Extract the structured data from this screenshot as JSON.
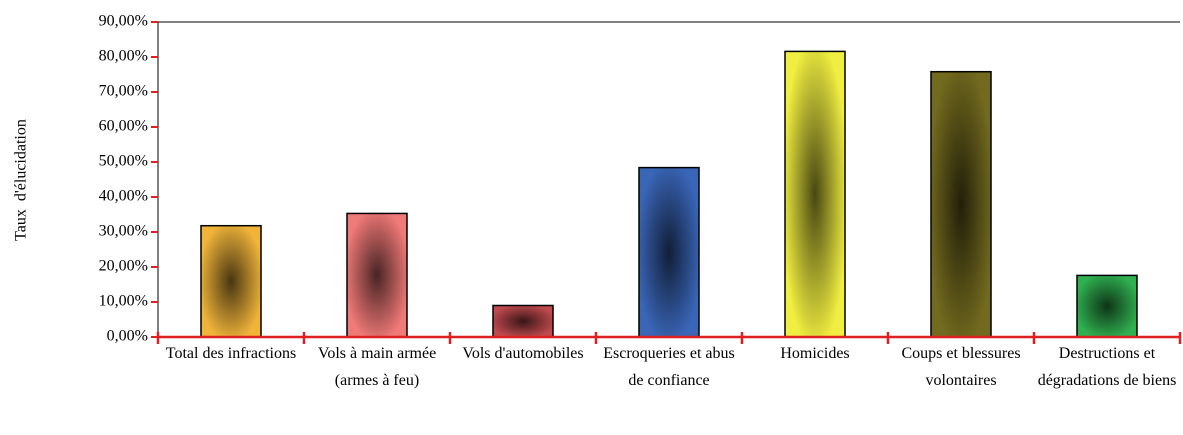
{
  "chart_data": {
    "type": "bar",
    "y_label": "Taux  d'élucidation",
    "categories": [
      "Total des infractions",
      "Vols à main armée (armes à feu)",
      "Vols d'automobiles",
      "Escroqueries et abus de confiance",
      "Homicides",
      "Coups et blessures volontaires",
      "Destructions et dégradations de biens"
    ],
    "values": [
      31.8,
      35.3,
      9.0,
      48.4,
      81.6,
      75.8,
      17.6
    ],
    "colors": [
      "#f0b43a",
      "#f07a78",
      "#c04a4e",
      "#3a66b8",
      "#f0ee40",
      "#726a1e",
      "#30b050"
    ],
    "ylim": [
      0,
      90
    ],
    "yticks": [
      {
        "value": 0,
        "label": "0,00%"
      },
      {
        "value": 10,
        "label": "10,00%"
      },
      {
        "value": 20,
        "label": "20,00%"
      },
      {
        "value": 30,
        "label": "30,00%"
      },
      {
        "value": 40,
        "label": "40,00%"
      },
      {
        "value": 50,
        "label": "50,00%"
      },
      {
        "value": 60,
        "label": "60,00%"
      },
      {
        "value": 70,
        "label": "70,00%"
      },
      {
        "value": 80,
        "label": "80,00%"
      },
      {
        "value": 90,
        "label": "90,00%"
      }
    ],
    "grid": false
  }
}
